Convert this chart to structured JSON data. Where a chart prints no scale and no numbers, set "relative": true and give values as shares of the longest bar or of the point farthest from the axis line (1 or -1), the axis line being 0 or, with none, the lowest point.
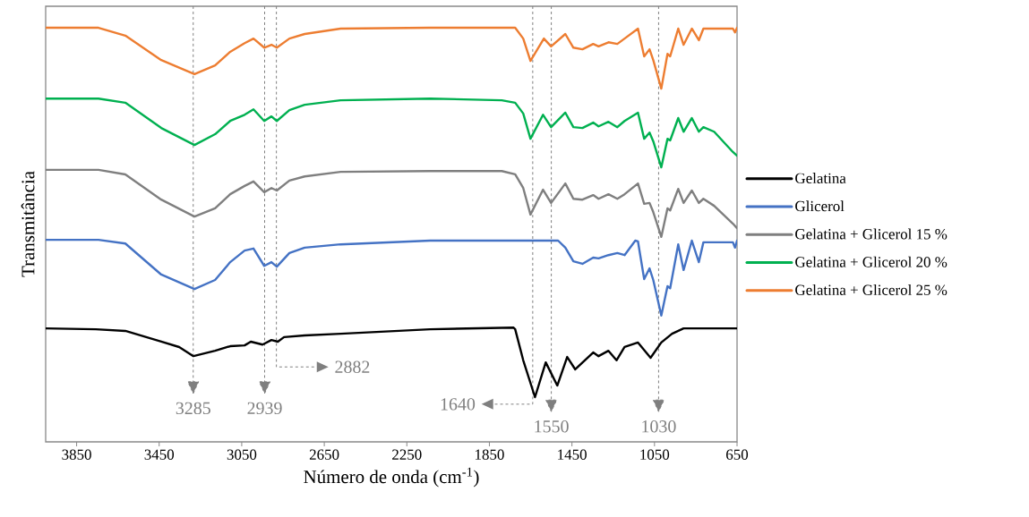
{
  "chart_data": {
    "type": "line",
    "relative": true,
    "xlabel": "Número de onda (cm$^{-1}$)",
    "ylabel": "Transmitância",
    "xlim": [
      4000,
      650
    ],
    "xticks": [
      3850,
      3450,
      3050,
      2650,
      2250,
      1850,
      1450,
      1050,
      650
    ],
    "legend": "right",
    "marker": "none",
    "line_style": "solid",
    "series": [
      {
        "name": "Gelatina",
        "color": "#000000",
        "x": [
          4000,
          3757,
          3614,
          3440,
          3353,
          3284,
          3179,
          3106,
          3036,
          3006,
          2949,
          2906,
          2875,
          2845,
          2745,
          2571,
          2137,
          1733,
          1725,
          1686,
          1629,
          1577,
          1521,
          1473,
          1434,
          1347,
          1321,
          1273,
          1234,
          1195,
          1130,
          1069,
          1017,
          965,
          909,
          761,
          650
        ],
        "values": [
          0.274,
          0.272,
          0.268,
          0.242,
          0.229,
          0.207,
          0.22,
          0.231,
          0.233,
          0.242,
          0.235,
          0.246,
          0.242,
          0.253,
          0.257,
          0.261,
          0.272,
          0.276,
          0.272,
          0.197,
          0.108,
          0.192,
          0.136,
          0.205,
          0.175,
          0.216,
          0.207,
          0.22,
          0.197,
          0.229,
          0.24,
          0.203,
          0.24,
          0.261,
          0.274,
          0.274,
          0.274
        ]
      },
      {
        "name": "Glicerol",
        "color": "#4472c4",
        "x": [
          4000,
          3744,
          3614,
          3440,
          3279,
          3179,
          3106,
          3036,
          2993,
          2941,
          2906,
          2880,
          2819,
          2745,
          2571,
          2137,
          1733,
          1517,
          1482,
          1443,
          1399,
          1347,
          1321,
          1273,
          1230,
          1195,
          1143,
          1130,
          1100,
          1074,
          1056,
          1017,
          987,
          974,
          935,
          909,
          869,
          835,
          813,
          670,
          660,
          650
        ],
        "values": [
          0.488,
          0.488,
          0.479,
          0.404,
          0.369,
          0.391,
          0.434,
          0.462,
          0.467,
          0.425,
          0.434,
          0.423,
          0.456,
          0.469,
          0.477,
          0.486,
          0.486,
          0.486,
          0.469,
          0.436,
          0.43,
          0.445,
          0.443,
          0.451,
          0.456,
          0.451,
          0.486,
          0.484,
          0.393,
          0.419,
          0.391,
          0.305,
          0.376,
          0.371,
          0.477,
          0.415,
          0.486,
          0.434,
          0.482,
          0.482,
          0.469,
          0.486
        ]
      },
      {
        "name": "Gelatina + Glicerol 15 %",
        "color": "#7f7f7f",
        "x": [
          4000,
          3744,
          3614,
          3440,
          3279,
          3179,
          3106,
          3036,
          2993,
          2941,
          2906,
          2880,
          2819,
          2745,
          2571,
          2137,
          1790,
          1725,
          1686,
          1651,
          1590,
          1551,
          1482,
          1443,
          1399,
          1347,
          1321,
          1273,
          1230,
          1195,
          1130,
          1100,
          1074,
          1056,
          1017,
          987,
          974,
          935,
          909,
          869,
          835,
          813,
          761,
          670,
          650
        ],
        "values": [
          0.657,
          0.657,
          0.646,
          0.585,
          0.544,
          0.564,
          0.598,
          0.618,
          0.629,
          0.603,
          0.613,
          0.607,
          0.631,
          0.641,
          0.652,
          0.654,
          0.654,
          0.646,
          0.613,
          0.549,
          0.609,
          0.577,
          0.624,
          0.587,
          0.585,
          0.596,
          0.587,
          0.598,
          0.587,
          0.598,
          0.624,
          0.575,
          0.577,
          0.555,
          0.495,
          0.564,
          0.559,
          0.611,
          0.577,
          0.607,
          0.577,
          0.587,
          0.57,
          0.527,
          0.516
        ]
      },
      {
        "name": "Gelatina + Glicerol 20 %",
        "color": "#00b050",
        "x": [
          4000,
          3744,
          3614,
          3440,
          3279,
          3179,
          3106,
          3036,
          2993,
          2941,
          2906,
          2880,
          2819,
          2745,
          2571,
          2137,
          1790,
          1725,
          1686,
          1651,
          1590,
          1551,
          1482,
          1443,
          1399,
          1347,
          1321,
          1273,
          1230,
          1195,
          1130,
          1100,
          1074,
          1056,
          1017,
          987,
          974,
          935,
          909,
          869,
          835,
          813,
          761,
          670,
          650
        ],
        "values": [
          0.829,
          0.829,
          0.819,
          0.758,
          0.717,
          0.743,
          0.775,
          0.79,
          0.803,
          0.775,
          0.786,
          0.775,
          0.801,
          0.814,
          0.825,
          0.829,
          0.825,
          0.819,
          0.793,
          0.732,
          0.79,
          0.76,
          0.795,
          0.76,
          0.758,
          0.771,
          0.762,
          0.773,
          0.76,
          0.775,
          0.795,
          0.732,
          0.747,
          0.726,
          0.663,
          0.732,
          0.728,
          0.782,
          0.749,
          0.782,
          0.749,
          0.76,
          0.749,
          0.7,
          0.691
        ]
      },
      {
        "name": "Gelatina + Glicerol 25 %",
        "color": "#ed7d31",
        "x": [
          4000,
          3744,
          3614,
          3440,
          3279,
          3179,
          3106,
          3036,
          2993,
          2941,
          2906,
          2880,
          2819,
          2745,
          2571,
          2137,
          1725,
          1686,
          1651,
          1586,
          1551,
          1482,
          1443,
          1399,
          1347,
          1321,
          1273,
          1230,
          1195,
          1130,
          1100,
          1074,
          1056,
          1017,
          987,
          974,
          935,
          909,
          869,
          835,
          813,
          670,
          660,
          650
        ],
        "values": [
          1.0,
          1.0,
          0.981,
          0.922,
          0.888,
          0.909,
          0.942,
          0.963,
          0.974,
          0.952,
          0.959,
          0.952,
          0.974,
          0.985,
          0.998,
          1.0,
          1.0,
          0.974,
          0.92,
          0.974,
          0.955,
          0.985,
          0.952,
          0.948,
          0.961,
          0.955,
          0.965,
          0.961,
          0.974,
          0.998,
          0.931,
          0.948,
          0.922,
          0.853,
          0.937,
          0.931,
          0.998,
          0.959,
          0.998,
          0.97,
          0.998,
          0.998,
          0.989,
          1.0
        ]
      }
    ],
    "ref_lines": [
      {
        "axis": "x",
        "value": 3285,
        "label": "3285",
        "color": "#7f7f7f",
        "line_style": "dashed"
      },
      {
        "axis": "x",
        "value": 2939,
        "label": "2939",
        "color": "#7f7f7f",
        "line_style": "dashed"
      },
      {
        "axis": "x",
        "value": 2882,
        "label": "2882",
        "color": "#7f7f7f",
        "line_style": "dashed"
      },
      {
        "axis": "x",
        "value": 1640,
        "label": "1640",
        "color": "#7f7f7f",
        "line_style": "dashed"
      },
      {
        "axis": "x",
        "value": 1550,
        "label": "1550",
        "color": "#7f7f7f",
        "line_style": "dashed"
      },
      {
        "axis": "x",
        "value": 1030,
        "label": "1030",
        "color": "#7f7f7f",
        "line_style": "dashed"
      }
    ]
  }
}
